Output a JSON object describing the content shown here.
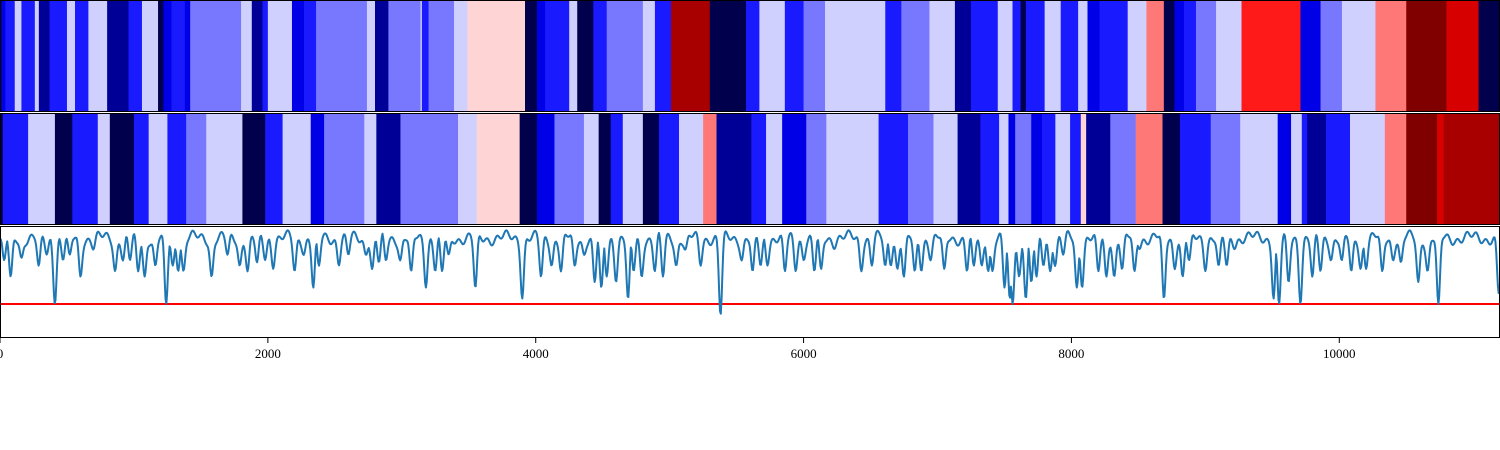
{
  "chart_data": [
    {
      "type": "heatmap",
      "colormap": "diverging blue-white-red (navy → blue → white → red → dark red)",
      "x_range": [
        0,
        11200
      ],
      "level_colors": {
        "-4": "#00004d",
        "-3": "#000096",
        "-2": "#0000e6",
        "-1": "#1a1aff",
        "-0.6": "#7878ff",
        "-0.3": "#d0d0ff",
        "0.3": "#ffd4d4",
        "0.6": "#ff7878",
        "1": "#ff1a1a",
        "2": "#d60000",
        "3": "#a80000",
        "4": "#800000"
      },
      "segments": [
        [
          0,
          10,
          -4
        ],
        [
          10,
          40,
          -2
        ],
        [
          40,
          110,
          -1
        ],
        [
          110,
          160,
          -0.3
        ],
        [
          160,
          260,
          -1
        ],
        [
          260,
          290,
          -0.3
        ],
        [
          290,
          370,
          -3
        ],
        [
          370,
          500,
          -1
        ],
        [
          500,
          560,
          -0.3
        ],
        [
          560,
          660,
          -1
        ],
        [
          660,
          800,
          -0.3
        ],
        [
          800,
          960,
          -3
        ],
        [
          960,
          1060,
          -1
        ],
        [
          1060,
          1180,
          -0.3
        ],
        [
          1180,
          1220,
          -4
        ],
        [
          1220,
          1280,
          -2
        ],
        [
          1280,
          1380,
          -1
        ],
        [
          1380,
          1420,
          -2
        ],
        [
          1420,
          1800,
          -0.6
        ],
        [
          1800,
          1880,
          -0.3
        ],
        [
          1880,
          1960,
          -3
        ],
        [
          1960,
          2000,
          -1
        ],
        [
          2000,
          2180,
          -0.3
        ],
        [
          2180,
          2270,
          -2
        ],
        [
          2270,
          2360,
          -1
        ],
        [
          2360,
          2740,
          -0.6
        ],
        [
          2740,
          2800,
          -0.3
        ],
        [
          2800,
          2900,
          -3
        ],
        [
          2900,
          3140,
          -0.6
        ],
        [
          3140,
          3150,
          -0.3
        ],
        [
          3150,
          3200,
          -1
        ],
        [
          3200,
          3390,
          -0.6
        ],
        [
          3390,
          3490,
          -0.3
        ],
        [
          3490,
          3920,
          0.3
        ],
        [
          3920,
          4010,
          -4
        ],
        [
          4010,
          4070,
          -2
        ],
        [
          4070,
          4250,
          -1
        ],
        [
          4250,
          4310,
          -0.3
        ],
        [
          4310,
          4430,
          -4
        ],
        [
          4430,
          4530,
          -1
        ],
        [
          4530,
          4800,
          -0.6
        ],
        [
          4800,
          4890,
          -0.3
        ],
        [
          4890,
          5010,
          -1
        ],
        [
          5010,
          5300,
          3
        ],
        [
          5300,
          5570,
          -4
        ],
        [
          5570,
          5670,
          -1
        ],
        [
          5670,
          5860,
          -0.3
        ],
        [
          5860,
          6000,
          -1
        ],
        [
          6000,
          6160,
          -0.6
        ],
        [
          6160,
          6610,
          -0.3
        ],
        [
          6610,
          6730,
          -1
        ],
        [
          6730,
          6940,
          -0.6
        ],
        [
          6940,
          7130,
          -0.3
        ],
        [
          7130,
          7250,
          -3
        ],
        [
          7250,
          7450,
          -1
        ],
        [
          7450,
          7560,
          -0.3
        ],
        [
          7560,
          7620,
          -1
        ],
        [
          7620,
          7660,
          -4
        ],
        [
          7660,
          7800,
          -1
        ],
        [
          7800,
          7920,
          -0.3
        ],
        [
          7920,
          8050,
          -1
        ],
        [
          8050,
          8120,
          -0.3
        ],
        [
          8120,
          8210,
          -2
        ],
        [
          8210,
          8420,
          -1
        ],
        [
          8420,
          8560,
          -0.3
        ],
        [
          8560,
          8690,
          0.6
        ],
        [
          8690,
          8770,
          -4
        ],
        [
          8770,
          8840,
          -2
        ],
        [
          8840,
          8930,
          -1
        ],
        [
          8930,
          9080,
          -0.6
        ],
        [
          9080,
          9270,
          -0.3
        ],
        [
          9270,
          9710,
          1
        ],
        [
          9710,
          9860,
          -2
        ],
        [
          9860,
          10020,
          -0.6
        ],
        [
          10020,
          10270,
          -0.3
        ],
        [
          10270,
          10500,
          0.6
        ],
        [
          10500,
          10800,
          4
        ],
        [
          10800,
          11040,
          2
        ],
        [
          11040,
          11200,
          -4
        ]
      ]
    },
    {
      "type": "heatmap",
      "x_range": [
        0,
        11200
      ],
      "segments": [
        [
          0,
          20,
          -4
        ],
        [
          20,
          210,
          -1
        ],
        [
          210,
          410,
          -0.3
        ],
        [
          410,
          540,
          -4
        ],
        [
          540,
          730,
          -1
        ],
        [
          730,
          820,
          -0.3
        ],
        [
          820,
          1000,
          -4
        ],
        [
          1000,
          1110,
          -1
        ],
        [
          1110,
          1250,
          -0.3
        ],
        [
          1250,
          1390,
          -1
        ],
        [
          1390,
          1540,
          -0.6
        ],
        [
          1540,
          1810,
          -0.3
        ],
        [
          1810,
          1980,
          -4
        ],
        [
          1980,
          2110,
          -1
        ],
        [
          2110,
          2320,
          -0.3
        ],
        [
          2320,
          2420,
          -2
        ],
        [
          2420,
          2720,
          -0.6
        ],
        [
          2720,
          2810,
          -0.3
        ],
        [
          2810,
          2990,
          -3
        ],
        [
          2990,
          3420,
          -0.6
        ],
        [
          3420,
          3560,
          -0.3
        ],
        [
          3560,
          3880,
          0.3
        ],
        [
          3880,
          4010,
          -4
        ],
        [
          4010,
          4140,
          -2
        ],
        [
          4140,
          4360,
          -0.6
        ],
        [
          4360,
          4470,
          -0.3
        ],
        [
          4470,
          4560,
          -4
        ],
        [
          4560,
          4650,
          -1
        ],
        [
          4650,
          4800,
          -0.3
        ],
        [
          4800,
          4920,
          -4
        ],
        [
          4920,
          5070,
          -1
        ],
        [
          5070,
          5250,
          -0.3
        ],
        [
          5250,
          5350,
          0.6
        ],
        [
          5350,
          5610,
          -3
        ],
        [
          5610,
          5720,
          -1
        ],
        [
          5720,
          5840,
          -0.3
        ],
        [
          5840,
          6020,
          -2
        ],
        [
          6020,
          6170,
          -0.6
        ],
        [
          6170,
          6560,
          -0.3
        ],
        [
          6560,
          6780,
          -1
        ],
        [
          6780,
          6970,
          -0.6
        ],
        [
          6970,
          7150,
          -0.3
        ],
        [
          7150,
          7320,
          -3
        ],
        [
          7320,
          7460,
          -1
        ],
        [
          7460,
          7530,
          -0.3
        ],
        [
          7530,
          7580,
          -2
        ],
        [
          7580,
          7700,
          -0.6
        ],
        [
          7700,
          7780,
          -2
        ],
        [
          7780,
          7880,
          -1
        ],
        [
          7880,
          7990,
          -0.3
        ],
        [
          7990,
          8070,
          -1
        ],
        [
          8070,
          8110,
          0.3
        ],
        [
          8110,
          8290,
          -3
        ],
        [
          8290,
          8480,
          -0.6
        ],
        [
          8480,
          8680,
          0.6
        ],
        [
          8680,
          8810,
          -4
        ],
        [
          8810,
          9040,
          -1
        ],
        [
          9040,
          9260,
          -0.6
        ],
        [
          9260,
          9540,
          -0.3
        ],
        [
          9540,
          9640,
          -2
        ],
        [
          9640,
          9720,
          -0.3
        ],
        [
          9720,
          9760,
          -1
        ],
        [
          9760,
          9900,
          -3
        ],
        [
          9900,
          10080,
          -1
        ],
        [
          10080,
          10340,
          -0.3
        ],
        [
          10340,
          10500,
          0.6
        ],
        [
          10500,
          10730,
          4
        ],
        [
          10730,
          10780,
          2
        ],
        [
          10780,
          11200,
          3
        ]
      ]
    },
    {
      "type": "line",
      "x_range": [
        0,
        11200
      ],
      "y_range": [
        0,
        1
      ],
      "line_color": "#1f77b4",
      "threshold": 0.3,
      "threshold_color": "#ff0000",
      "x_ticks": [
        0,
        2000,
        4000,
        6000,
        8000,
        10000
      ],
      "tick_labels": [
        "0",
        "2000",
        "4000",
        "6000",
        "8000",
        "10000"
      ],
      "dips": [
        [
          30,
          0.7
        ],
        [
          80,
          0.55
        ],
        [
          160,
          0.72
        ],
        [
          290,
          0.65
        ],
        [
          350,
          0.75
        ],
        [
          410,
          0.3
        ],
        [
          470,
          0.7
        ],
        [
          520,
          0.75
        ],
        [
          600,
          0.55
        ],
        [
          700,
          0.8
        ],
        [
          860,
          0.6
        ],
        [
          920,
          0.7
        ],
        [
          970,
          0.7
        ],
        [
          1030,
          0.6
        ],
        [
          1080,
          0.55
        ],
        [
          1160,
          0.65
        ],
        [
          1240,
          0.3
        ],
        [
          1290,
          0.65
        ],
        [
          1330,
          0.6
        ],
        [
          1370,
          0.6
        ],
        [
          1580,
          0.55
        ],
        [
          1700,
          0.75
        ],
        [
          1790,
          0.65
        ],
        [
          1850,
          0.6
        ],
        [
          1920,
          0.68
        ],
        [
          1980,
          0.7
        ],
        [
          2040,
          0.62
        ],
        [
          2200,
          0.6
        ],
        [
          2270,
          0.75
        ],
        [
          2340,
          0.45
        ],
        [
          2380,
          0.65
        ],
        [
          2530,
          0.65
        ],
        [
          2600,
          0.75
        ],
        [
          2730,
          0.75
        ],
        [
          2780,
          0.62
        ],
        [
          2830,
          0.68
        ],
        [
          2880,
          0.7
        ],
        [
          2990,
          0.7
        ],
        [
          3070,
          0.6
        ],
        [
          3180,
          0.45
        ],
        [
          3250,
          0.6
        ],
        [
          3300,
          0.6
        ],
        [
          3350,
          0.75
        ],
        [
          3550,
          0.45
        ],
        [
          3900,
          0.35
        ],
        [
          4040,
          0.55
        ],
        [
          4120,
          0.65
        ],
        [
          4190,
          0.6
        ],
        [
          4290,
          0.65
        ],
        [
          4360,
          0.75
        ],
        [
          4440,
          0.5
        ],
        [
          4490,
          0.45
        ],
        [
          4530,
          0.55
        ],
        [
          4600,
          0.5
        ],
        [
          4690,
          0.35
        ],
        [
          4730,
          0.6
        ],
        [
          4790,
          0.55
        ],
        [
          4890,
          0.6
        ],
        [
          4950,
          0.55
        ],
        [
          5050,
          0.65
        ],
        [
          5120,
          0.8
        ],
        [
          5230,
          0.65
        ],
        [
          5380,
          0.2
        ],
        [
          5540,
          0.7
        ],
        [
          5620,
          0.6
        ],
        [
          5680,
          0.65
        ],
        [
          5730,
          0.65
        ],
        [
          5860,
          0.6
        ],
        [
          5940,
          0.6
        ],
        [
          6000,
          0.7
        ],
        [
          6080,
          0.6
        ],
        [
          6130,
          0.62
        ],
        [
          6230,
          0.8
        ],
        [
          6430,
          0.6
        ],
        [
          6510,
          0.65
        ],
        [
          6610,
          0.65
        ],
        [
          6650,
          0.65
        ],
        [
          6700,
          0.62
        ],
        [
          6750,
          0.55
        ],
        [
          6830,
          0.6
        ],
        [
          6880,
          0.6
        ],
        [
          6950,
          0.7
        ],
        [
          7050,
          0.62
        ],
        [
          7220,
          0.6
        ],
        [
          7270,
          0.65
        ],
        [
          7330,
          0.65
        ],
        [
          7380,
          0.6
        ],
        [
          7410,
          0.6
        ],
        [
          7500,
          0.45
        ],
        [
          7540,
          0.35
        ],
        [
          7560,
          0.3
        ],
        [
          7610,
          0.55
        ],
        [
          7660,
          0.35
        ],
        [
          7700,
          0.5
        ],
        [
          7740,
          0.55
        ],
        [
          7790,
          0.65
        ],
        [
          7840,
          0.6
        ],
        [
          7880,
          0.65
        ],
        [
          7940,
          0.75
        ],
        [
          8040,
          0.45
        ],
        [
          8080,
          0.45
        ],
        [
          8200,
          0.6
        ],
        [
          8260,
          0.55
        ],
        [
          8320,
          0.55
        ],
        [
          8380,
          0.62
        ],
        [
          8470,
          0.6
        ],
        [
          8510,
          0.8
        ],
        [
          8690,
          0.35
        ],
        [
          8770,
          0.62
        ],
        [
          8830,
          0.55
        ],
        [
          8880,
          0.7
        ],
        [
          9000,
          0.6
        ],
        [
          9100,
          0.65
        ],
        [
          9160,
          0.65
        ],
        [
          9220,
          0.8
        ],
        [
          9510,
          0.35
        ],
        [
          9550,
          0.3
        ],
        [
          9620,
          0.5
        ],
        [
          9710,
          0.3
        ],
        [
          9800,
          0.55
        ],
        [
          9860,
          0.6
        ],
        [
          9940,
          0.7
        ],
        [
          10020,
          0.7
        ],
        [
          10090,
          0.6
        ],
        [
          10160,
          0.62
        ],
        [
          10200,
          0.62
        ],
        [
          10320,
          0.6
        ],
        [
          10400,
          0.7
        ],
        [
          10460,
          0.68
        ],
        [
          10590,
          0.5
        ],
        [
          10660,
          0.6
        ],
        [
          10740,
          0.3
        ],
        [
          11190,
          0.4
        ]
      ]
    }
  ]
}
